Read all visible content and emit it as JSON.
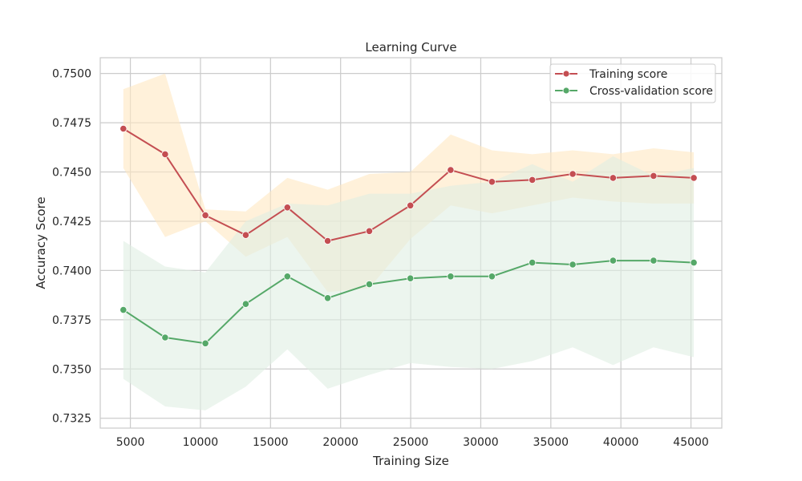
{
  "chart_data": {
    "type": "line",
    "title": "Learning Curve",
    "xlabel": "Training Size",
    "ylabel": "Accuracy Score",
    "xlim": [
      2850,
      47200
    ],
    "ylim": [
      0.732,
      0.7508
    ],
    "xticks": [
      5000,
      10000,
      15000,
      20000,
      25000,
      30000,
      35000,
      40000,
      45000
    ],
    "yticks": [
      0.7325,
      0.735,
      0.7375,
      0.74,
      0.7425,
      0.745,
      0.7475,
      0.75
    ],
    "grid": true,
    "legend_position": "top-right",
    "x": [
      4500,
      7480,
      10350,
      13230,
      16200,
      19080,
      22050,
      24980,
      27850,
      30800,
      33680,
      36560,
      39440,
      42330,
      45200
    ],
    "series": [
      {
        "name": "Training score",
        "color": "#c44e52",
        "band_color": "#ffe8c2",
        "values": [
          0.7472,
          0.7459,
          0.7428,
          0.7418,
          0.7432,
          0.7415,
          0.742,
          0.7433,
          0.7451,
          0.7445,
          0.7446,
          0.7449,
          0.7447,
          0.7448,
          0.7447
        ],
        "upper": [
          0.7492,
          0.75,
          0.7431,
          0.743,
          0.7447,
          0.7441,
          0.7449,
          0.745,
          0.7469,
          0.7461,
          0.7459,
          0.7461,
          0.7459,
          0.7462,
          0.746
        ],
        "lower": [
          0.7452,
          0.7417,
          0.7425,
          0.7407,
          0.7417,
          0.7389,
          0.7391,
          0.7416,
          0.7433,
          0.7429,
          0.7433,
          0.7437,
          0.7435,
          0.7434,
          0.7434
        ]
      },
      {
        "name": "Cross-validation score",
        "color": "#55a868",
        "band_color": "#dfefe2",
        "values": [
          0.738,
          0.7366,
          0.7363,
          0.7383,
          0.7397,
          0.7386,
          0.7393,
          0.7396,
          0.7397,
          0.7397,
          0.7404,
          0.7403,
          0.7405,
          0.7405,
          0.7404
        ],
        "upper": [
          0.7415,
          0.7402,
          0.7399,
          0.7425,
          0.7434,
          0.7433,
          0.7439,
          0.7439,
          0.7443,
          0.7445,
          0.7454,
          0.7445,
          0.7458,
          0.7448,
          0.7452
        ],
        "lower": [
          0.7345,
          0.7331,
          0.7329,
          0.7341,
          0.736,
          0.734,
          0.7347,
          0.7353,
          0.7351,
          0.735,
          0.7354,
          0.7361,
          0.7352,
          0.7361,
          0.7356
        ]
      }
    ]
  }
}
